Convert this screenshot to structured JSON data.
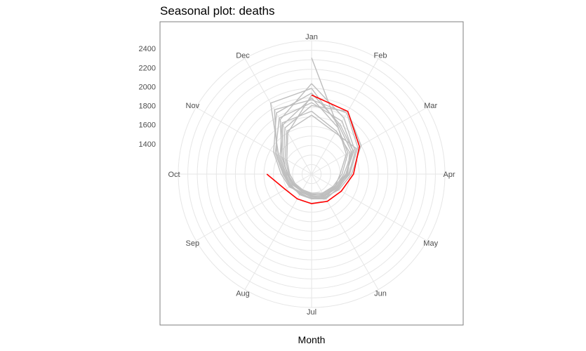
{
  "chart_data": {
    "type": "line",
    "coord": "polar",
    "title": "Seasonal plot: deaths",
    "xlabel": "Month",
    "ylabel": "",
    "categories": [
      "Jan",
      "Feb",
      "Mar",
      "Apr",
      "May",
      "Jun",
      "Jul",
      "Aug",
      "Sep",
      "Oct",
      "Nov",
      "Dec"
    ],
    "y_ticks": [
      1400,
      1600,
      1800,
      2000,
      2200,
      2400
    ],
    "ylim": [
      1200,
      2600
    ],
    "grid": true,
    "legend": "none",
    "colors": {
      "history": "#bebebe",
      "current": "#ff0000",
      "grid": "#e6e6e6",
      "panel_border": "#7f7f7f"
    },
    "series": [
      {
        "values": [
          2420,
          1760,
          1620,
          1500,
          1480,
          1490,
          1460,
          1450,
          1440,
          1455,
          1560,
          1860
        ]
      },
      {
        "values": [
          2150,
          1880,
          1720,
          1560,
          1490,
          1470,
          1440,
          1420,
          1460,
          1490,
          1620,
          1980
        ]
      },
      {
        "values": [
          1980,
          1940,
          1760,
          1600,
          1510,
          1500,
          1460,
          1430,
          1450,
          1470,
          1580,
          1820
        ]
      },
      {
        "values": [
          1860,
          1720,
          1660,
          1580,
          1500,
          1470,
          1430,
          1420,
          1470,
          1520,
          1660,
          1940
        ]
      },
      {
        "values": [
          2050,
          1800,
          1700,
          1540,
          1480,
          1450,
          1410,
          1400,
          1420,
          1460,
          1540,
          1760
        ]
      },
      {
        "values": [
          1920,
          1960,
          1800,
          1620,
          1530,
          1480,
          1450,
          1440,
          1450,
          1480,
          1600,
          2060
        ]
      },
      {
        "values": [
          2100,
          1780,
          1680,
          1570,
          1490,
          1460,
          1430,
          1410,
          1430,
          1440,
          1520,
          1720
        ]
      },
      {
        "values": [
          1820,
          1700,
          1740,
          1590,
          1520,
          1490,
          1460,
          1440,
          1460,
          1500,
          1640,
          1880
        ]
      },
      {
        "values": [
          1950,
          1840,
          1700,
          1560,
          1470,
          1440,
          1420,
          1400,
          1410,
          1450,
          1560,
          1800
        ]
      },
      {
        "values": [
          2000,
          1760,
          1640,
          1520,
          1460,
          1430,
          1400,
          1390,
          1400,
          1430,
          1500,
          1700
        ]
      }
    ],
    "current": {
      "values": [
        2030,
        1960,
        1780,
        1640,
        1560,
        1530,
        1510,
        1500,
        1520,
        1670
      ]
    }
  }
}
